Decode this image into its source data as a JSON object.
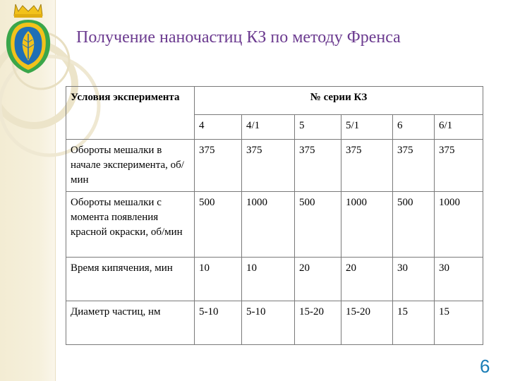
{
  "slide": {
    "title": "Получение наночастиц КЗ по методу Френса",
    "page_number": "6"
  },
  "table": {
    "condition_header": "Условия эксперимента",
    "series_header": "№ серии КЗ",
    "series": [
      "4",
      "4/1",
      "5",
      "5/1",
      "6",
      "6/1"
    ],
    "rows": [
      {
        "label": "Обороты мешалки в начале эксперимента, об/мин",
        "values": [
          "375",
          "375",
          "375",
          "375",
          "375",
          "375"
        ]
      },
      {
        "label": "Обороты мешалки с момента появления красной окраски, об/мин",
        "values": [
          "500",
          "1000",
          "500",
          "1000",
          "500",
          "1000"
        ]
      },
      {
        "label": "Время кипячения, мин",
        "values": [
          "10",
          "10",
          "20",
          "20",
          "30",
          "30"
        ]
      },
      {
        "label": "Диаметр частиц, нм",
        "values": [
          "5-10",
          "5-10",
          "15-20",
          "15-20",
          "15",
          "15"
        ]
      }
    ]
  },
  "colors": {
    "title": "#6b3a8f",
    "page_number": "#1a7db6",
    "band": "#f3ecd3",
    "emblem_gold": "#f2c21b",
    "emblem_blue": "#1f6fb5",
    "emblem_green": "#3aa64a"
  },
  "icons": {
    "emblem": "city-coat-of-arms-icon"
  }
}
